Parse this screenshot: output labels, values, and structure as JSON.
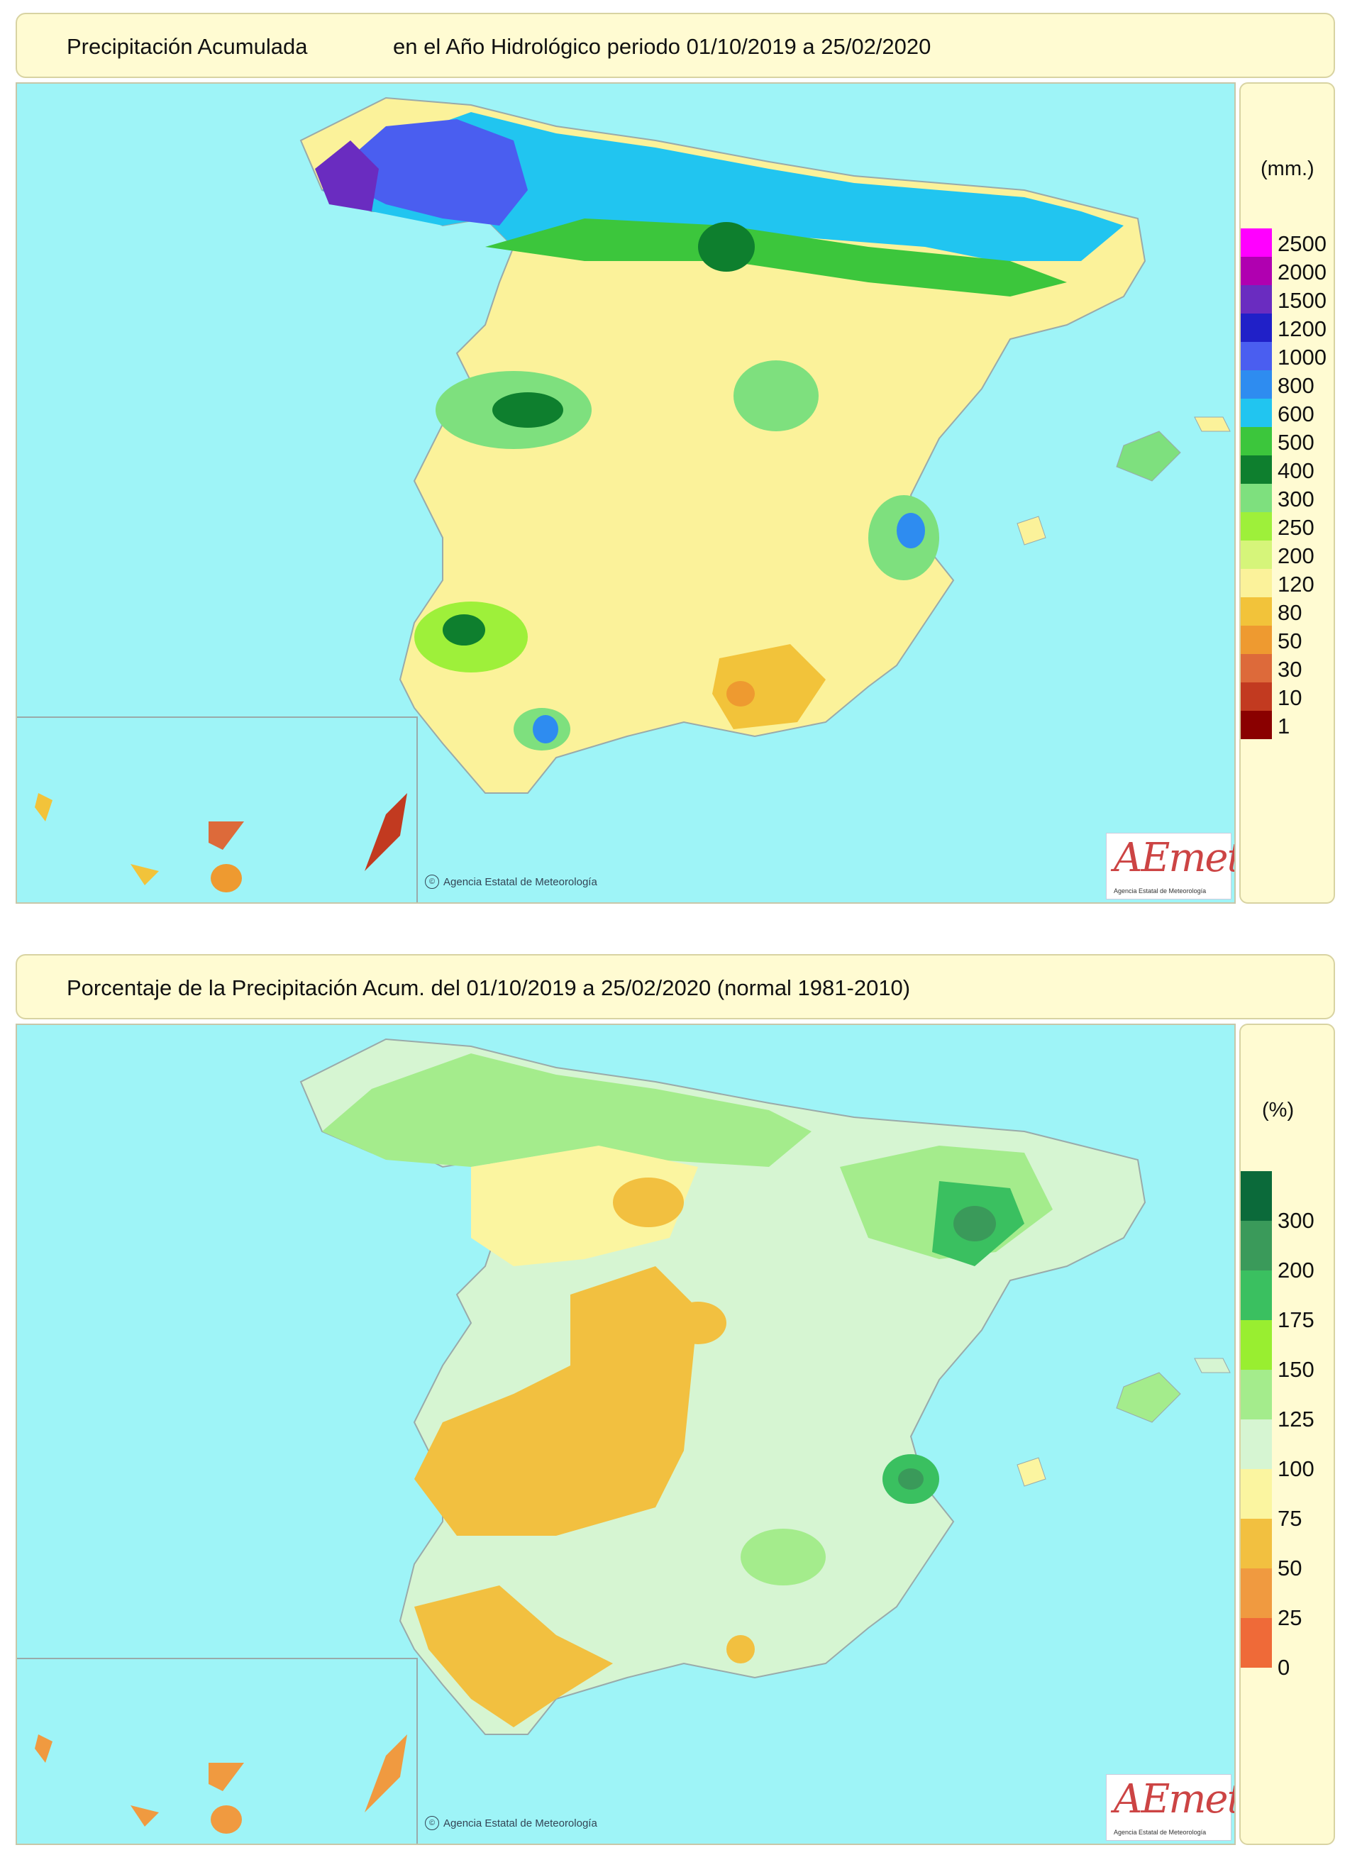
{
  "map1": {
    "title_left": "Precipitación Acumulada",
    "title_right": "en el Año Hidrológico  periodo 01/10/2019 a 25/02/2020",
    "legend_unit": "(mm.)",
    "legend_labels": [
      "2500",
      "2000",
      "1500",
      "1200",
      "1000",
      "800",
      "600",
      "500",
      "400",
      "300",
      "250",
      "200",
      "120",
      "80",
      "50",
      "30",
      "10",
      "1"
    ],
    "legend_colors": [
      "#ff00ff",
      "#b000b0",
      "#6a2cc0",
      "#2020c8",
      "#4a5ef0",
      "#2e8cf0",
      "#21c5f0",
      "#3cc63c",
      "#0e7f2e",
      "#7ee07e",
      "#9ef03a",
      "#d6f57a",
      "#fbf29a",
      "#f2c33a",
      "#ee9a30",
      "#dd6a3a",
      "#c23a20",
      "#8a0000"
    ],
    "credit": "Agencia Estatal de Meteorología",
    "cc_icon": "cc-icon"
  },
  "map2": {
    "title": "Porcentaje de la Precipitación Acum. del 01/10/2019 a  25/02/2020  (normal 1981-2010)",
    "legend_unit": "(%)",
    "legend_labels": [
      "300",
      "200",
      "175",
      "150",
      "125",
      "100",
      "75",
      "50",
      "25",
      "0"
    ],
    "legend_colors": [
      "#0b6a3a",
      "#3a9a5a",
      "#3ac060",
      "#99ee30",
      "#a4ec8c",
      "#d6f5d2",
      "#fbf5a0",
      "#f2c040",
      "#f09a40",
      "#ef6a38"
    ],
    "credit": "Agencia Estatal de Meteorología"
  },
  "logo": {
    "word": "AEmet",
    "sub": "Agencia Estatal de Meteorología"
  },
  "colors": {
    "sea": "#9ef4f7",
    "panel": "#fffbd2",
    "border": "#d8d3a2"
  }
}
